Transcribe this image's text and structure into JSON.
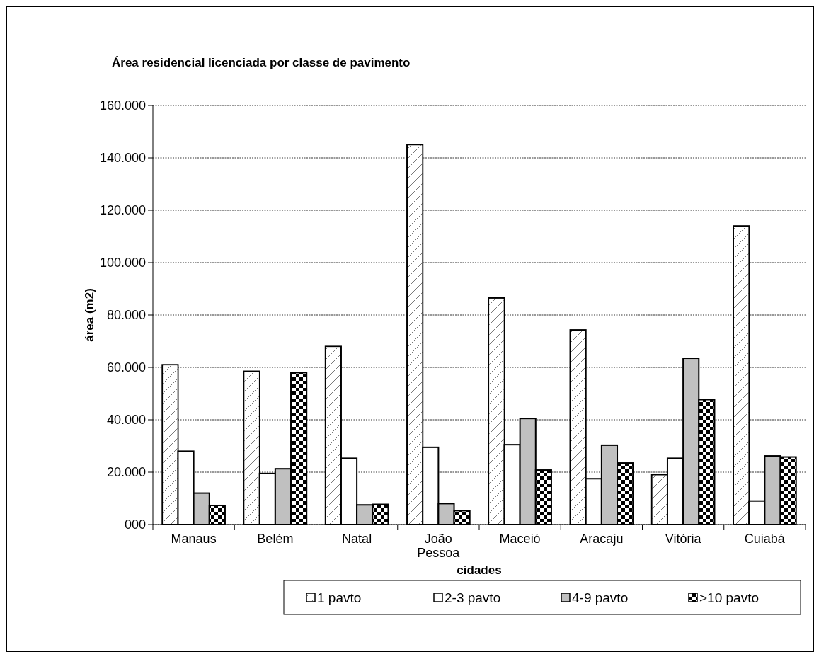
{
  "chart_data": {
    "type": "bar",
    "title": "Área residencial licenciada por classe de pavimento",
    "xlabel": "cidades",
    "ylabel": "área (m2)",
    "categories": [
      "Manaus",
      "Belém",
      "Natal",
      "João Pessoa",
      "Maceió",
      "Aracaju",
      "Vitória",
      "Cuiabá"
    ],
    "series": [
      {
        "name": "1 pavto",
        "color": "#ffffff",
        "values": [
          61000,
          58500,
          68000,
          145000,
          86500,
          74300,
          19000,
          114000
        ]
      },
      {
        "name": "2-3 pavto",
        "color": "#ffffff",
        "values": [
          28000,
          19500,
          25300,
          29500,
          30500,
          17500,
          25300,
          9000
        ]
      },
      {
        "name": "4-9 pavto",
        "color": "#c0c0c0",
        "values": [
          12000,
          21300,
          7500,
          8000,
          40500,
          30300,
          63500,
          26200
        ]
      },
      {
        "name": ">10 pavto",
        "color": "#000000",
        "values": [
          7300,
          58000,
          7700,
          5300,
          20800,
          23500,
          47700,
          25800
        ]
      }
    ],
    "ylim": [
      0,
      160000
    ],
    "yticks": [
      {
        "value": 0,
        "label": "000"
      },
      {
        "value": 20000,
        "label": "20.000"
      },
      {
        "value": 40000,
        "label": "40.000"
      },
      {
        "value": 60000,
        "label": "60.000"
      },
      {
        "value": 80000,
        "label": "80.000"
      },
      {
        "value": 100000,
        "label": "100.000"
      },
      {
        "value": 120000,
        "label": "120.000"
      },
      {
        "value": 140000,
        "label": "140.000"
      },
      {
        "value": 160000,
        "label": "160.000"
      }
    ],
    "grid": "y",
    "legend": "bottom"
  }
}
